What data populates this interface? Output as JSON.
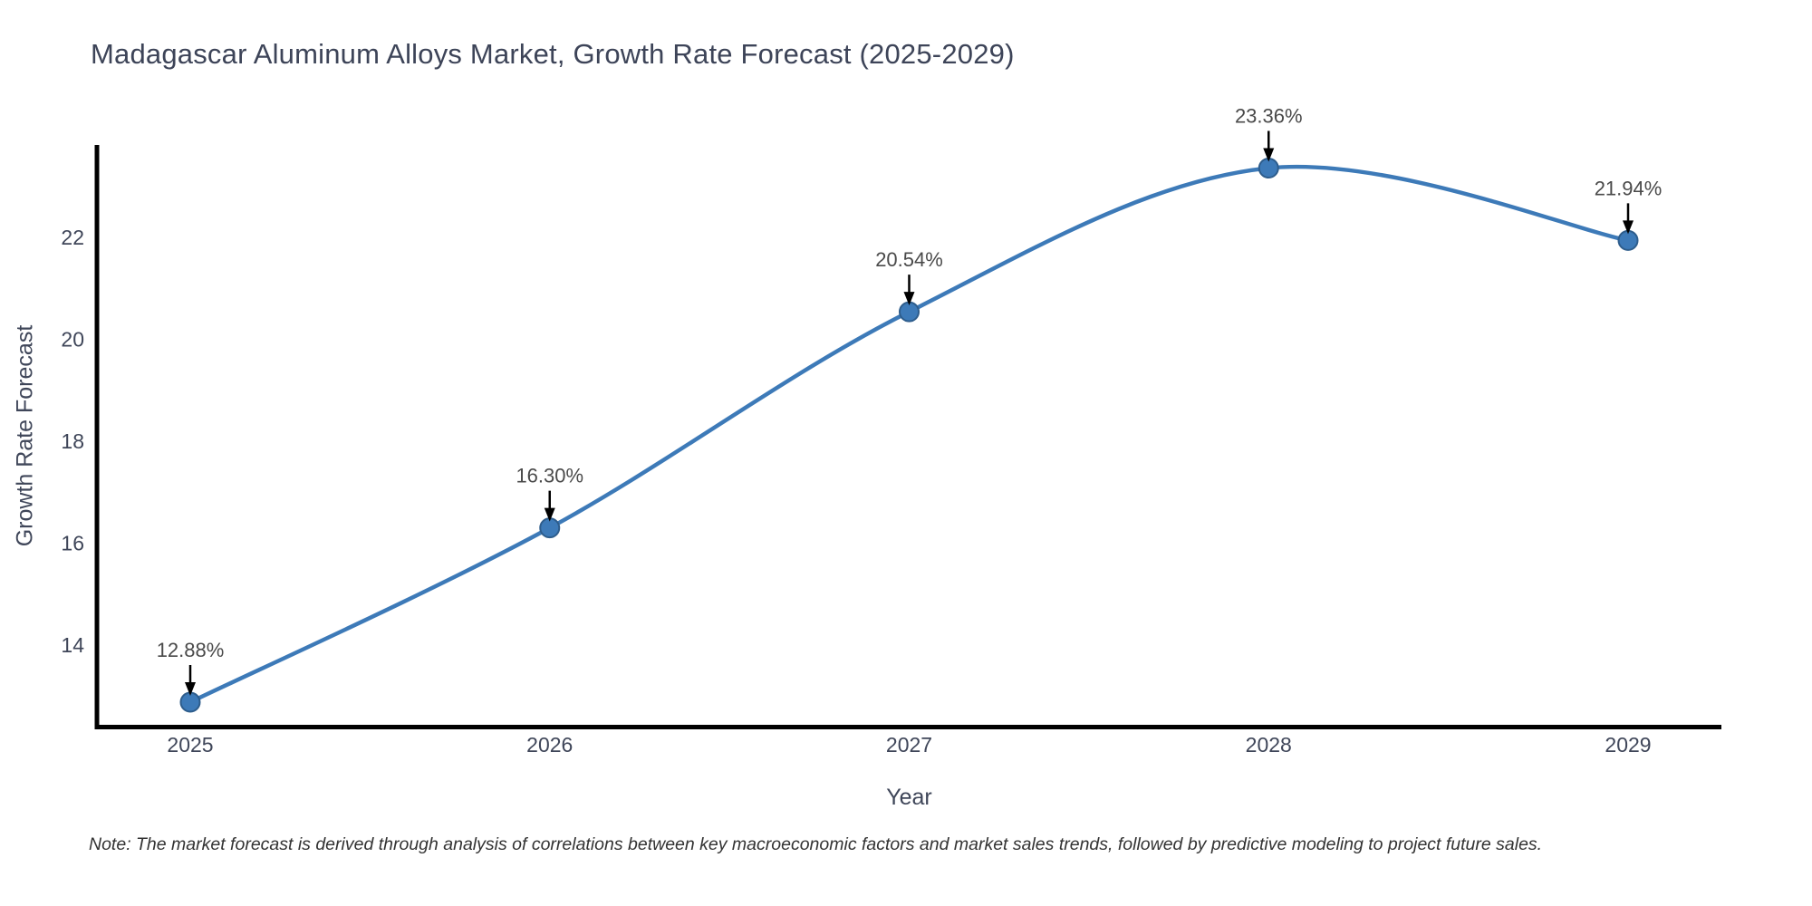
{
  "chart_data": {
    "type": "line",
    "title": "Madagascar Aluminum Alloys Market, Growth Rate Forecast (2025-2029)",
    "xlabel": "Year",
    "ylabel": "Growth Rate Forecast",
    "x": [
      2025,
      2026,
      2027,
      2028,
      2029
    ],
    "values": [
      12.88,
      16.3,
      20.54,
      23.36,
      21.94
    ],
    "point_labels": [
      "12.88%",
      "16.30%",
      "20.54%",
      "23.36%",
      "21.94%"
    ],
    "x_tick_labels": [
      "2025",
      "2026",
      "2027",
      "2028",
      "2029"
    ],
    "y_tick_labels": [
      "14",
      "16",
      "18",
      "20",
      "22"
    ],
    "y_tick_values": [
      14,
      16,
      18,
      20,
      22
    ],
    "ylim": [
      12.4,
      23.8
    ],
    "line_shape": "spline",
    "grid": false,
    "legend": false,
    "line_color": "#3d7ab8",
    "marker_color": "#3d7ab8",
    "marker_edge_color": "#2e5d8c",
    "axis_color": "#000000",
    "annotation_arrow_color": "#000000",
    "note": "Note: The market forecast is derived through analysis of correlations between key macroeconomic factors and market sales trends, followed by predictive modeling to project future sales."
  }
}
